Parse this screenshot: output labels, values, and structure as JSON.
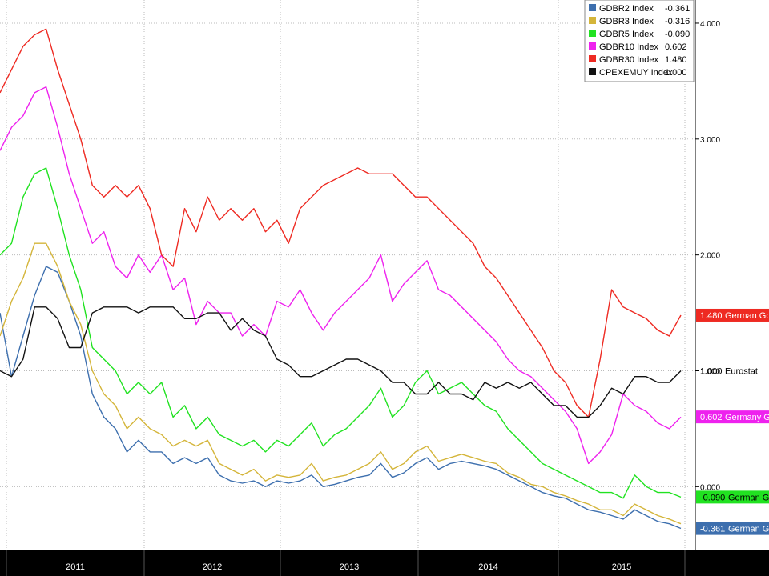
{
  "chart_data": {
    "type": "line",
    "x_labels": [
      "2011",
      "2012",
      "2013",
      "2014",
      "2015"
    ],
    "y_ticks": [
      "4.000",
      "3.000",
      "2.000",
      "1.000",
      "0.000"
    ],
    "ylim": [
      -0.55,
      4.2
    ],
    "series": [
      {
        "name": "GDBR2 Index",
        "value": "-0.361",
        "color": "#3d6fae",
        "values": [
          1.5,
          0.95,
          1.3,
          1.65,
          1.9,
          1.85,
          1.6,
          1.3,
          0.8,
          0.6,
          0.5,
          0.3,
          0.4,
          0.3,
          0.3,
          0.2,
          0.25,
          0.2,
          0.25,
          0.1,
          0.05,
          0.03,
          0.05,
          0.0,
          0.05,
          0.03,
          0.05,
          0.1,
          0.0,
          0.02,
          0.05,
          0.08,
          0.1,
          0.2,
          0.08,
          0.12,
          0.2,
          0.25,
          0.15,
          0.2,
          0.22,
          0.2,
          0.18,
          0.15,
          0.1,
          0.05,
          0.0,
          -0.05,
          -0.08,
          -0.1,
          -0.15,
          -0.2,
          -0.22,
          -0.25,
          -0.28,
          -0.2,
          -0.25,
          -0.3,
          -0.32,
          -0.36
        ]
      },
      {
        "name": "GDBR3 Index",
        "value": "-0.316",
        "color": "#d4b53a",
        "values": [
          1.3,
          1.6,
          1.8,
          2.1,
          2.1,
          1.9,
          1.6,
          1.4,
          1.0,
          0.8,
          0.7,
          0.5,
          0.6,
          0.5,
          0.45,
          0.35,
          0.4,
          0.35,
          0.4,
          0.2,
          0.15,
          0.1,
          0.15,
          0.05,
          0.1,
          0.08,
          0.1,
          0.2,
          0.05,
          0.08,
          0.1,
          0.15,
          0.2,
          0.3,
          0.15,
          0.2,
          0.3,
          0.35,
          0.22,
          0.25,
          0.28,
          0.25,
          0.22,
          0.2,
          0.12,
          0.08,
          0.02,
          0.0,
          -0.05,
          -0.08,
          -0.12,
          -0.15,
          -0.2,
          -0.2,
          -0.25,
          -0.15,
          -0.2,
          -0.25,
          -0.28,
          -0.32
        ]
      },
      {
        "name": "GDBR5 Index",
        "value": "-0.090",
        "color": "#21e221",
        "values": [
          2.0,
          2.1,
          2.5,
          2.7,
          2.75,
          2.4,
          2.0,
          1.7,
          1.2,
          1.1,
          1.0,
          0.8,
          0.9,
          0.8,
          0.9,
          0.6,
          0.7,
          0.5,
          0.6,
          0.45,
          0.4,
          0.35,
          0.4,
          0.3,
          0.4,
          0.35,
          0.45,
          0.55,
          0.35,
          0.45,
          0.5,
          0.6,
          0.7,
          0.85,
          0.6,
          0.7,
          0.9,
          1.0,
          0.8,
          0.85,
          0.9,
          0.8,
          0.7,
          0.65,
          0.5,
          0.4,
          0.3,
          0.2,
          0.15,
          0.1,
          0.05,
          0.0,
          -0.05,
          -0.05,
          -0.1,
          0.1,
          0.0,
          -0.05,
          -0.05,
          -0.09
        ]
      },
      {
        "name": "GDBR10 Index",
        "value": "0.602",
        "color": "#ee22ee",
        "values": [
          2.9,
          3.1,
          3.2,
          3.4,
          3.45,
          3.1,
          2.7,
          2.4,
          2.1,
          2.2,
          1.9,
          1.8,
          2.0,
          1.85,
          2.0,
          1.7,
          1.8,
          1.4,
          1.6,
          1.5,
          1.5,
          1.3,
          1.4,
          1.3,
          1.6,
          1.55,
          1.7,
          1.5,
          1.35,
          1.5,
          1.6,
          1.7,
          1.8,
          2.0,
          1.6,
          1.75,
          1.85,
          1.95,
          1.7,
          1.65,
          1.55,
          1.45,
          1.35,
          1.25,
          1.1,
          1.0,
          0.95,
          0.85,
          0.75,
          0.65,
          0.5,
          0.2,
          0.3,
          0.45,
          0.8,
          0.7,
          0.65,
          0.55,
          0.5,
          0.6
        ]
      },
      {
        "name": "GDBR30 Index",
        "value": "1.480",
        "color": "#ee2a22",
        "values": [
          3.4,
          3.6,
          3.8,
          3.9,
          3.95,
          3.6,
          3.3,
          3.0,
          2.6,
          2.5,
          2.6,
          2.5,
          2.6,
          2.4,
          2.0,
          1.9,
          2.4,
          2.2,
          2.5,
          2.3,
          2.4,
          2.3,
          2.4,
          2.2,
          2.3,
          2.1,
          2.4,
          2.5,
          2.6,
          2.65,
          2.7,
          2.75,
          2.7,
          2.7,
          2.7,
          2.6,
          2.5,
          2.5,
          2.4,
          2.3,
          2.2,
          2.1,
          1.9,
          1.8,
          1.65,
          1.5,
          1.35,
          1.2,
          1.0,
          0.9,
          0.7,
          0.6,
          1.1,
          1.7,
          1.55,
          1.5,
          1.45,
          1.35,
          1.3,
          1.48
        ]
      },
      {
        "name": "CPEXEMUY Index",
        "value": "1.000",
        "color": "#111111",
        "values": [
          1.0,
          0.95,
          1.1,
          1.55,
          1.55,
          1.45,
          1.2,
          1.2,
          1.5,
          1.55,
          1.55,
          1.55,
          1.5,
          1.55,
          1.55,
          1.55,
          1.45,
          1.45,
          1.5,
          1.5,
          1.35,
          1.45,
          1.35,
          1.3,
          1.1,
          1.05,
          0.95,
          0.95,
          1.0,
          1.05,
          1.1,
          1.1,
          1.05,
          1.0,
          0.9,
          0.9,
          0.8,
          0.8,
          0.9,
          0.8,
          0.8,
          0.75,
          0.9,
          0.85,
          0.9,
          0.85,
          0.9,
          0.8,
          0.7,
          0.7,
          0.6,
          0.6,
          0.7,
          0.85,
          0.8,
          0.95,
          0.95,
          0.9,
          0.9,
          1.0
        ]
      }
    ],
    "end_tags": [
      {
        "value": "1.480",
        "label": "German Go",
        "color": "#ee2a22",
        "text_color": "#ffffff",
        "dy": 0
      },
      {
        "value": "1.000",
        "label": "Eurostat",
        "color": "#ffffff",
        "text_color": "#000000",
        "plain": true,
        "dy": 0
      },
      {
        "value": "0.602",
        "label": "Germany G",
        "color": "#ee22ee",
        "text_color": "#ffffff",
        "dy": 0
      },
      {
        "value": "-0.090",
        "label": "German Go",
        "color": "#21e221",
        "text_color": "#000000",
        "dy": 0
      },
      {
        "value": "-0.361",
        "label": "German Go",
        "color": "#3d6fae",
        "text_color": "#ffffff",
        "dy": 0
      }
    ]
  }
}
